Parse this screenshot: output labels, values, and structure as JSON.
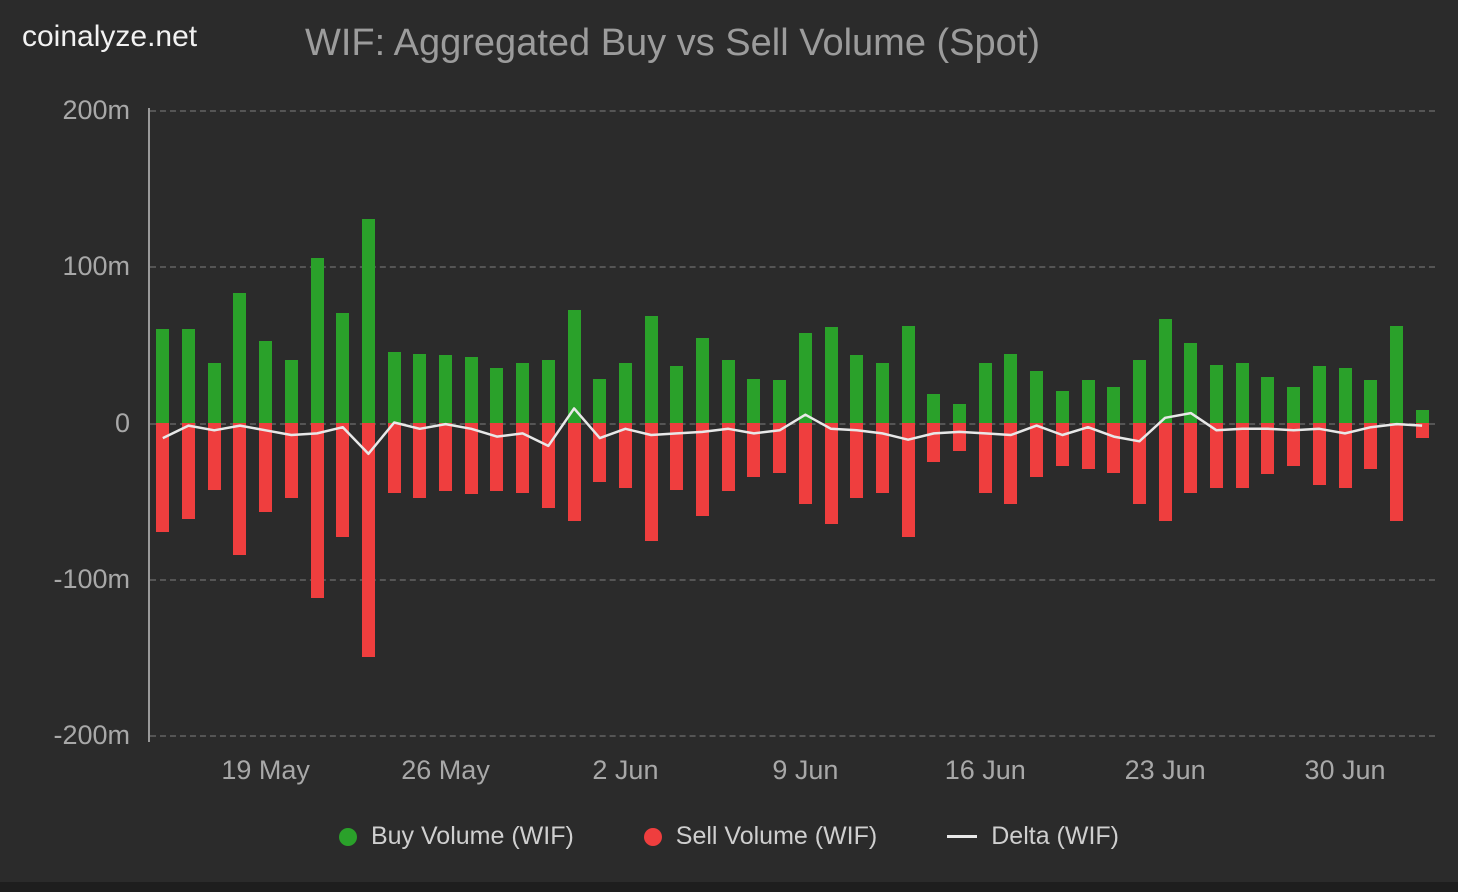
{
  "brand": "coinalyze.net",
  "title": "WIF: Aggregated Buy vs Sell Volume (Spot)",
  "legend": {
    "buy": "Buy Volume (WIF)",
    "sell": "Sell Volume (WIF)",
    "delta": "Delta (WIF)"
  },
  "colors": {
    "buy": "#2aa12a",
    "sell": "#ef3e3e",
    "delta": "#e8e8e8",
    "background": "#2b2b2b",
    "grid": "#555555",
    "axis_text": "#a8a8a8"
  },
  "chart_data": {
    "type": "bar",
    "title": "WIF: Aggregated Buy vs Sell Volume (Spot)",
    "unit": "WIF volume in millions",
    "ylim": [
      -200,
      200
    ],
    "y_ticks": [
      "200m",
      "100m",
      "0",
      "-100m",
      "-200m"
    ],
    "grid": "dashed horizontal",
    "legend_position": "bottom",
    "n_points": 50,
    "x_tick_labels": [
      {
        "label": "19 May",
        "index": 4
      },
      {
        "label": "26 May",
        "index": 11
      },
      {
        "label": "2 Jun",
        "index": 18
      },
      {
        "label": "9 Jun",
        "index": 25
      },
      {
        "label": "16 Jun",
        "index": 32
      },
      {
        "label": "23 Jun",
        "index": 39
      },
      {
        "label": "30 Jun",
        "index": 46
      }
    ],
    "series": [
      {
        "name": "Buy Volume (WIF)",
        "type": "bar",
        "color": "#2aa12a",
        "values": [
          60,
          60,
          38,
          83,
          52,
          40,
          105,
          70,
          130,
          45,
          44,
          43,
          42,
          35,
          38,
          40,
          72,
          28,
          38,
          68,
          36,
          54,
          40,
          28,
          27,
          57,
          61,
          43,
          38,
          62,
          18,
          12,
          38,
          44,
          33,
          20,
          27,
          23,
          40,
          66,
          51,
          37,
          38,
          29,
          23,
          36,
          35,
          27,
          62,
          8
        ]
      },
      {
        "name": "Sell Volume (WIF)",
        "type": "bar",
        "color": "#ef3e3e",
        "values": [
          -70,
          -62,
          -43,
          -85,
          -57,
          -48,
          -112,
          -73,
          -150,
          -45,
          -48,
          -44,
          -46,
          -44,
          -45,
          -55,
          -63,
          -38,
          -42,
          -76,
          -43,
          -60,
          -44,
          -35,
          -32,
          -52,
          -65,
          -48,
          -45,
          -73,
          -25,
          -18,
          -45,
          -52,
          -35,
          -28,
          -30,
          -32,
          -52,
          -63,
          -45,
          -42,
          -42,
          -33,
          -28,
          -40,
          -42,
          -30,
          -63,
          -10
        ]
      },
      {
        "name": "Delta (WIF)",
        "type": "line",
        "color": "#e8e8e8",
        "values": [
          -10,
          -2,
          -5,
          -2,
          -5,
          -8,
          -7,
          -3,
          -20,
          0,
          -4,
          -1,
          -4,
          -9,
          -7,
          -15,
          9,
          -10,
          -4,
          -8,
          -7,
          -6,
          -4,
          -7,
          -5,
          5,
          -4,
          -5,
          -7,
          -11,
          -7,
          -6,
          -7,
          -8,
          -2,
          -8,
          -3,
          -9,
          -12,
          3,
          6,
          -5,
          -4,
          -4,
          -5,
          -4,
          -7,
          -3,
          -1,
          -2
        ]
      }
    ]
  }
}
